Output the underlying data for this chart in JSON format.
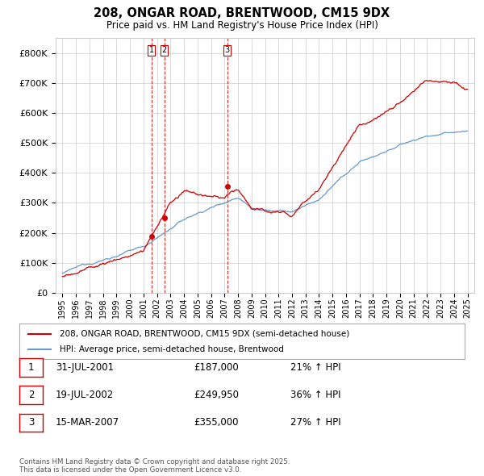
{
  "title": "208, ONGAR ROAD, BRENTWOOD, CM15 9DX",
  "subtitle": "Price paid vs. HM Land Registry's House Price Index (HPI)",
  "ytick_values": [
    0,
    100000,
    200000,
    300000,
    400000,
    500000,
    600000,
    700000,
    800000
  ],
  "ylim": [
    0,
    850000
  ],
  "xlim": [
    1994.5,
    2025.5
  ],
  "sale_color": "#cc0000",
  "hpi_color": "#6699cc",
  "vline_color": "#cc0000",
  "legend_entry1": "208, ONGAR ROAD, BRENTWOOD, CM15 9DX (semi-detached house)",
  "legend_entry2": "HPI: Average price, semi-detached house, Brentwood",
  "transactions": [
    {
      "label": "1",
      "date": "31-JUL-2001",
      "price": 187000,
      "pct": "21%",
      "dir": "↑",
      "year": 2001.58
    },
    {
      "label": "2",
      "date": "19-JUL-2002",
      "price": 249950,
      "pct": "36%",
      "dir": "↑",
      "year": 2002.55
    },
    {
      "label": "3",
      "date": "15-MAR-2007",
      "price": 355000,
      "pct": "27%",
      "dir": "↑",
      "year": 2007.21
    }
  ],
  "footer": "Contains HM Land Registry data © Crown copyright and database right 2025.\nThis data is licensed under the Open Government Licence v3.0.",
  "background_color": "#ffffff",
  "grid_color": "#cccccc"
}
